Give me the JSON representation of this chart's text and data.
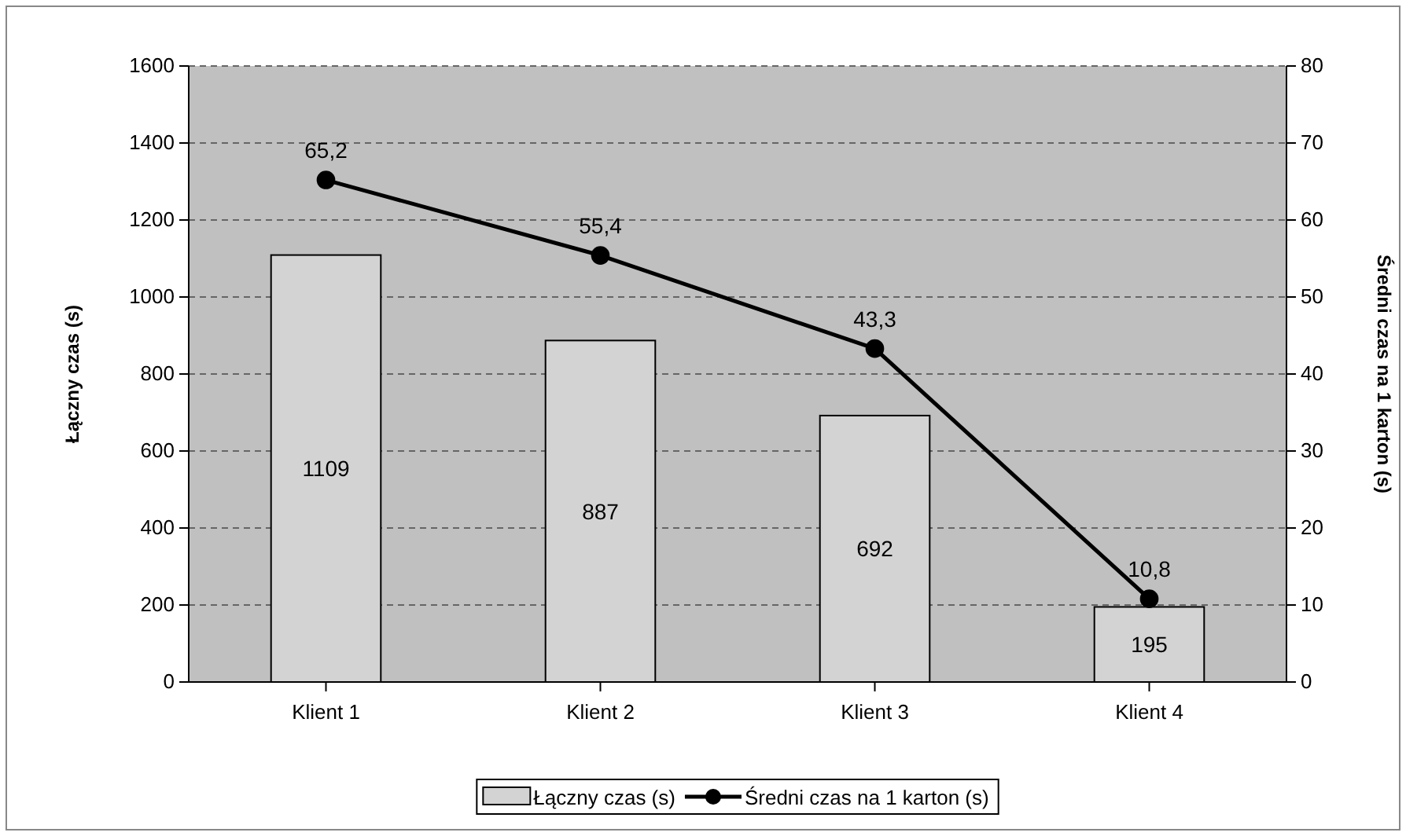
{
  "chart_data": {
    "type": "bar",
    "ylabel": "Łączny czas (s)",
    "y2label": "Średni czas na 1 karton (s)",
    "categories": [
      "Klient 1",
      "Klient 2",
      "Klient 3",
      "Klient 4"
    ],
    "series": [
      {
        "name": "Łączny czas (s)",
        "color": "#d3d3d3",
        "values": [
          1109,
          887,
          692,
          195
        ],
        "value_labels": [
          "1109",
          "887",
          "692",
          "195"
        ]
      },
      {
        "name": "Średni czas na 1 karton (s)",
        "type": "line",
        "axis": "y2",
        "color": "#000000",
        "values": [
          65.2,
          55.4,
          43.3,
          10.8
        ],
        "value_labels": [
          "65,2",
          "55,4",
          "43,3",
          "10,8"
        ]
      }
    ],
    "ylim": [
      0,
      1600
    ],
    "yticks": [
      0,
      200,
      400,
      600,
      800,
      1000,
      1200,
      1400,
      1600
    ],
    "y2lim": [
      0,
      80
    ],
    "y2ticks": [
      0,
      10,
      20,
      30,
      40,
      50,
      60,
      70,
      80
    ],
    "grid": "y",
    "legend": "bottom",
    "marker": "circle",
    "line_style": "solid"
  }
}
